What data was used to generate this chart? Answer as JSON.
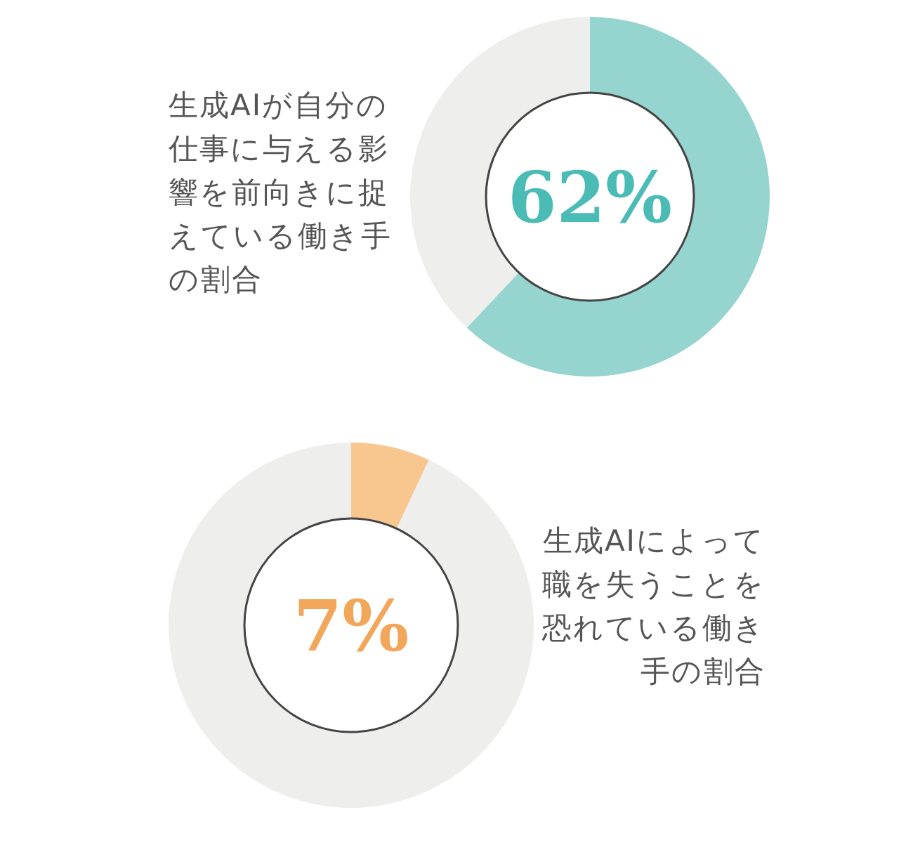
{
  "chart_data": [
    {
      "type": "donut",
      "title": "生成AIが自分の仕事に与える影響を前向きに捉えている働き手の割合",
      "categories": [
        null,
        null
      ],
      "values": [
        62,
        38
      ],
      "colors": [
        "#96d4d0",
        "#eeeeec"
      ],
      "annotations": [
        "62%"
      ]
    },
    {
      "type": "donut",
      "title": "生成AIによって職を失うことを恐れている働き手の割合",
      "categories": [
        null,
        null
      ],
      "values": [
        7,
        93
      ],
      "colors": [
        "#f8c68f",
        "#eeeeec"
      ],
      "annotations": [
        "7%"
      ]
    }
  ]
}
